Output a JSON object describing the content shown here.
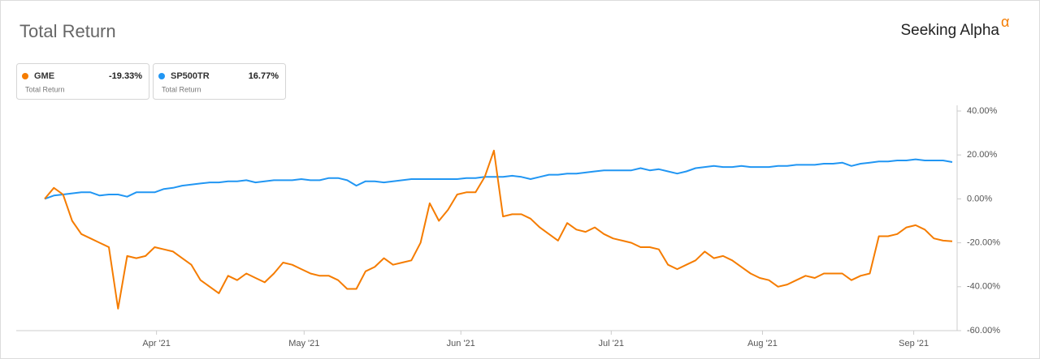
{
  "chart_data": {
    "type": "line",
    "title": "Total Return",
    "brand": "Seeking Alpha",
    "brand_mark": "α",
    "series": [
      {
        "name": "GME",
        "color": "#f57c00",
        "return_label": "-19.33%",
        "sublabel": "Total Return",
        "values": [
          0,
          5,
          2,
          -10,
          -16,
          -18,
          -20,
          -22,
          -50,
          -26,
          -27,
          -26,
          -22,
          -23,
          -24,
          -27,
          -30,
          -37,
          -40,
          -43,
          -35,
          -37,
          -34,
          -36,
          -38,
          -34,
          -29,
          -30,
          -32,
          -34,
          -35,
          -35,
          -37,
          -41,
          -41,
          -33,
          -31,
          -27,
          -30,
          -29,
          -28,
          -20,
          -2,
          -10,
          -5,
          2,
          3,
          3,
          10,
          22,
          -8,
          -7,
          -7,
          -9,
          -13,
          -16,
          -19,
          -11,
          -14,
          -15,
          -13,
          -16,
          -18,
          -19,
          -20,
          -22,
          -22,
          -23,
          -30,
          -32,
          -30,
          -28,
          -24,
          -27,
          -26,
          -28,
          -31,
          -34,
          -36,
          -37,
          -40,
          -39,
          -37,
          -35,
          -36,
          -34,
          -34,
          -34,
          -37,
          -35,
          -34,
          -17,
          -17,
          -16,
          -13,
          -12,
          -14,
          -18,
          -19,
          -19.33
        ]
      },
      {
        "name": "SP500TR",
        "color": "#2196f3",
        "return_label": "16.77%",
        "sublabel": "Total Return",
        "values": [
          0,
          1.5,
          2,
          2.5,
          3,
          3,
          1.5,
          2,
          2,
          1,
          3,
          3,
          3,
          4.5,
          5,
          6,
          6.5,
          7,
          7.5,
          7.5,
          8,
          8,
          8.5,
          7.5,
          8,
          8.5,
          8.5,
          8.5,
          9,
          8.5,
          8.5,
          9.5,
          9.5,
          8.5,
          6,
          8,
          8,
          7.5,
          8,
          8.5,
          9,
          9,
          9,
          9,
          9,
          9,
          9.5,
          9.5,
          10,
          10,
          10,
          10.5,
          10,
          9,
          10,
          11,
          11,
          11.5,
          11.5,
          12,
          12.5,
          13,
          13,
          13,
          13,
          14,
          13,
          13.5,
          12.5,
          11.5,
          12.5,
          14,
          14.5,
          15,
          14.5,
          14.5,
          15,
          14.5,
          14.5,
          14.5,
          15,
          15,
          15.5,
          15.5,
          15.5,
          16,
          16,
          16.5,
          15,
          16,
          16.5,
          17,
          17,
          17.5,
          17.5,
          18,
          17.5,
          17.5,
          17.5,
          16.77
        ]
      }
    ],
    "xticks": [
      {
        "value": 12.2,
        "label": "Apr '21"
      },
      {
        "value": 28.3,
        "label": "May '21"
      },
      {
        "value": 45.4,
        "label": "Jun '21"
      },
      {
        "value": 61.8,
        "label": "Jul '21"
      },
      {
        "value": 78.3,
        "label": "Aug '21"
      },
      {
        "value": 94.8,
        "label": "Sep '21"
      }
    ],
    "ylim": [
      -60,
      40
    ],
    "yticks": [
      {
        "value": 40,
        "label": "40.00%"
      },
      {
        "value": 20,
        "label": "20.00%"
      },
      {
        "value": 0,
        "label": "0.00%"
      },
      {
        "value": -20,
        "label": "-20.00%"
      },
      {
        "value": -40,
        "label": "-40.00%"
      },
      {
        "value": -60,
        "label": "-60.00%"
      }
    ],
    "grid": false
  }
}
